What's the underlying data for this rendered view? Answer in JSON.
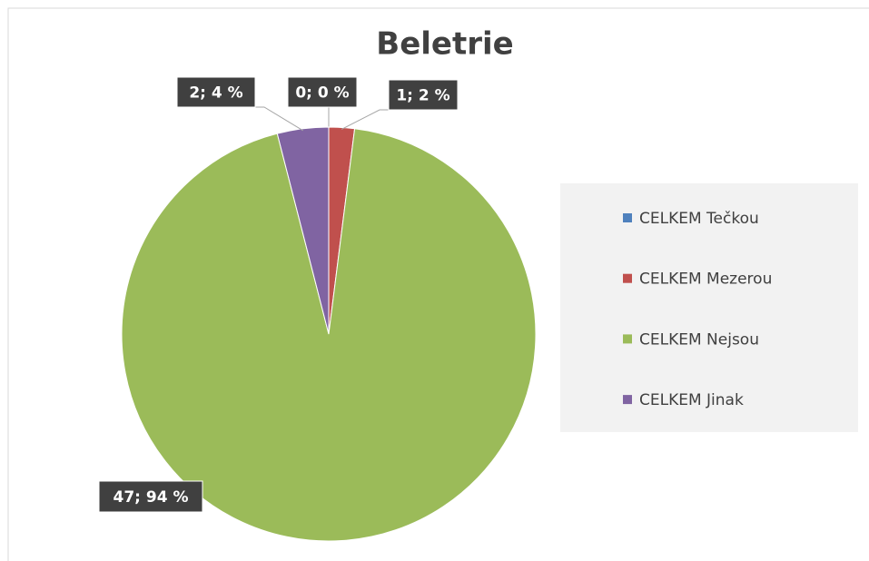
{
  "chart_data": {
    "type": "pie",
    "title": "Beletrie",
    "categories": [
      "CELKEM Tečkou",
      "CELKEM Mezerou",
      "CELKEM Nejsou",
      "CELKEM Jinak"
    ],
    "values": [
      0,
      1,
      47,
      2
    ],
    "value_labels": [
      "0; 0 %",
      "1; 2 %",
      "47; 94 %",
      "2; 4 %"
    ],
    "colors": [
      "#4f81bd",
      "#c0504d",
      "#9bbb59",
      "#8064a2"
    ],
    "legend": "right"
  }
}
